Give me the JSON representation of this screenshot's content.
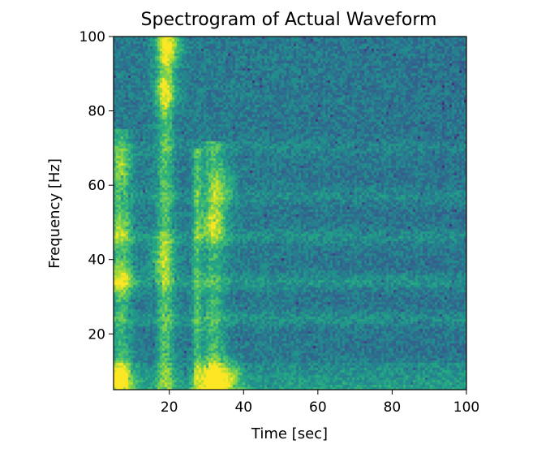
{
  "chart_data": {
    "type": "heatmap",
    "title": "Spectrogram of Actual Waveform",
    "xlabel": "Time [sec]",
    "ylabel": "Frequency [Hz]",
    "xlim": [
      5,
      100
    ],
    "ylim": [
      5,
      100
    ],
    "x_ticks": [
      20,
      40,
      60,
      80,
      100
    ],
    "y_ticks": [
      20,
      40,
      60,
      80,
      100
    ],
    "colormap": "viridis",
    "value_range": [
      0,
      1
    ],
    "grid": false,
    "background_level": 0.42,
    "low_frequency_band": {
      "freq_max": 12,
      "level": 0.58
    },
    "horizontal_bands": [
      {
        "freq": 24,
        "level": 0.52
      },
      {
        "freq": 34,
        "level": 0.54
      },
      {
        "freq": 46,
        "level": 0.52
      },
      {
        "freq": 57,
        "level": 0.5
      },
      {
        "freq": 70,
        "level": 0.48
      }
    ],
    "hotspots": [
      {
        "time": 7,
        "freq": 8,
        "level": 0.95
      },
      {
        "time": 7,
        "freq": 35,
        "level": 0.82
      },
      {
        "time": 7,
        "freq": 48,
        "level": 0.72
      },
      {
        "time": 7,
        "freq": 65,
        "level": 0.7
      },
      {
        "time": 20,
        "freq": 97,
        "level": 0.92
      },
      {
        "time": 19,
        "freq": 85,
        "level": 0.8
      },
      {
        "time": 18,
        "freq": 40,
        "level": 0.72
      },
      {
        "time": 31,
        "freq": 8,
        "level": 0.9
      },
      {
        "time": 32,
        "freq": 50,
        "level": 0.8
      },
      {
        "time": 34,
        "freq": 60,
        "level": 0.7
      },
      {
        "time": 36,
        "freq": 8,
        "level": 0.86
      }
    ],
    "streaks": [
      {
        "time_center": 19,
        "time_width": 2.2,
        "freq_min": 5,
        "freq_max": 100,
        "level": 0.72
      },
      {
        "time_center": 27.5,
        "time_width": 1.2,
        "freq_min": 5,
        "freq_max": 70,
        "level": 0.68
      },
      {
        "time_center": 32,
        "time_width": 3.0,
        "freq_min": 5,
        "freq_max": 72,
        "level": 0.66
      },
      {
        "time_center": 7,
        "time_width": 2.5,
        "freq_min": 5,
        "freq_max": 75,
        "level": 0.64
      }
    ]
  }
}
